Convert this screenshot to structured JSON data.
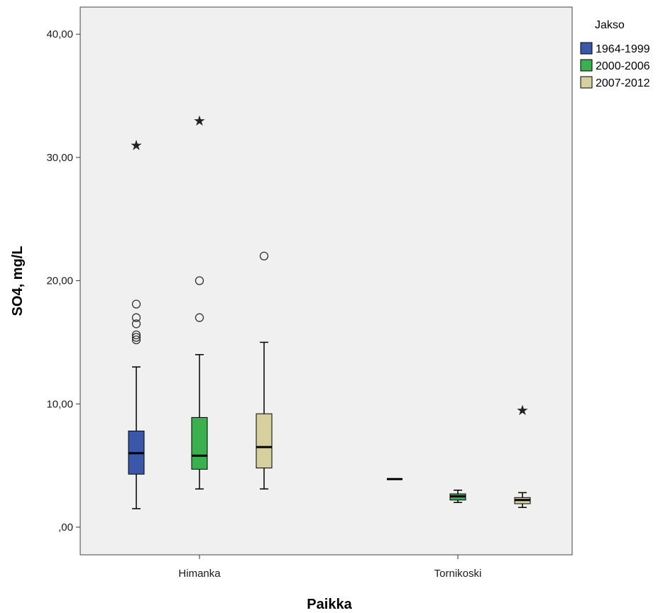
{
  "chart_data": {
    "type": "box",
    "ylabel": "SO4, mg/L",
    "xlabel": "Paikka",
    "ylim": [
      -2.3,
      44.6
    ],
    "yticks": [
      0,
      10,
      20,
      30,
      40
    ],
    "ytick_labels": [
      ",00",
      "10,00",
      "20,00",
      "30,00",
      "40,00"
    ],
    "categories": [
      "Himanka",
      "Tornikoski"
    ],
    "grid": false,
    "legend": {
      "title": "Jakso",
      "position": "top-right",
      "entries": [
        {
          "label": "1964-1999",
          "color": "#3b58a8"
        },
        {
          "label": "2000-2006",
          "color": "#3ab04f"
        },
        {
          "label": "2007-2012",
          "color": "#d6cf9f"
        }
      ]
    },
    "boxes": [
      {
        "category": "Himanka",
        "series": "1964-1999",
        "whisker_low": 1.5,
        "q1": 4.3,
        "median": 6.0,
        "q3": 7.8,
        "whisker_high": 13.0,
        "outliers": [
          15.2,
          15.4,
          15.6,
          16.5,
          17.0,
          18.1
        ],
        "extremes": [
          31.0
        ]
      },
      {
        "category": "Himanka",
        "series": "2000-2006",
        "whisker_low": 3.1,
        "q1": 4.7,
        "median": 5.8,
        "q3": 8.9,
        "whisker_high": 14.0,
        "outliers": [
          17.0,
          20.0
        ],
        "extremes": [
          33.0
        ]
      },
      {
        "category": "Himanka",
        "series": "2007-2012",
        "whisker_low": 3.1,
        "q1": 4.8,
        "median": 6.5,
        "q3": 9.2,
        "whisker_high": 15.0,
        "outliers": [
          22.0
        ],
        "extremes": []
      },
      {
        "category": "Tornikoski",
        "series": "1964-1999",
        "whisker_low": 3.9,
        "q1": 3.9,
        "median": 3.9,
        "q3": 3.9,
        "whisker_high": 3.9,
        "outliers": [],
        "extremes": []
      },
      {
        "category": "Tornikoski",
        "series": "2000-2006",
        "whisker_low": 2.0,
        "q1": 2.2,
        "median": 2.5,
        "q3": 2.7,
        "whisker_high": 3.0,
        "outliers": [],
        "extremes": []
      },
      {
        "category": "Tornikoski",
        "series": "2007-2012",
        "whisker_low": 1.6,
        "q1": 1.9,
        "median": 2.2,
        "q3": 2.4,
        "whisker_high": 2.8,
        "outliers": [],
        "extremes": [
          9.5
        ]
      }
    ]
  }
}
